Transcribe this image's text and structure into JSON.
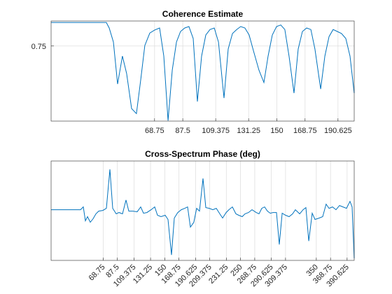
{
  "chart_data": [
    {
      "type": "line",
      "title": "Coherence Estimate",
      "color": "#0072bd",
      "grid": true,
      "xlim": [
        0,
        201.4
      ],
      "ylim": [
        0.6,
        0.8
      ],
      "xticks": [
        68.75,
        87.5,
        109.375,
        131.25,
        150,
        168.75,
        190.625
      ],
      "yticks": [
        0.75
      ],
      "x": [
        0,
        36.7,
        38.6,
        41.4,
        44.2,
        47.4,
        50.2,
        53.5,
        56.7,
        59.5,
        62.3,
        65.6,
        68.8,
        72.1,
        74.9,
        77.7,
        80.5,
        83.3,
        86,
        88.8,
        91.6,
        94.4,
        97.2,
        100,
        102.8,
        105.6,
        108.4,
        111.2,
        114.9,
        117.7,
        120.5,
        123.3,
        126,
        128.8,
        131.6,
        134.4,
        138.1,
        141.4,
        144.2,
        147,
        149.8,
        152.6,
        155.3,
        158.1,
        161.4,
        164.2,
        167,
        169.8,
        172.6,
        175.3,
        179.1,
        181.9,
        184.7,
        187.4,
        190.2,
        193,
        195.8,
        198.6,
        201.4
      ],
      "values": [
        0.797,
        0.797,
        0.786,
        0.758,
        0.674,
        0.73,
        0.695,
        0.625,
        0.615,
        0.681,
        0.751,
        0.776,
        0.782,
        0.786,
        0.73,
        0.601,
        0.702,
        0.758,
        0.779,
        0.786,
        0.789,
        0.765,
        0.639,
        0.73,
        0.772,
        0.783,
        0.786,
        0.758,
        0.646,
        0.744,
        0.775,
        0.783,
        0.789,
        0.786,
        0.772,
        0.741,
        0.702,
        0.677,
        0.73,
        0.772,
        0.789,
        0.792,
        0.783,
        0.73,
        0.656,
        0.744,
        0.779,
        0.786,
        0.783,
        0.744,
        0.664,
        0.73,
        0.769,
        0.783,
        0.779,
        0.775,
        0.765,
        0.73,
        0.656
      ]
    },
    {
      "type": "line",
      "title": "Cross-Spectrum Phase (deg)",
      "color": "#0072bd",
      "grid": true,
      "xlim": [
        0,
        400
      ],
      "ylim": [
        -102,
        98
      ],
      "xticks": [
        68.75,
        87.5,
        109.375,
        131.25,
        150,
        168.75,
        190.625,
        209.375,
        231.25,
        250,
        268.75,
        290.625,
        309.375,
        350,
        368.75,
        390.625
      ],
      "x": [
        0,
        38.8,
        42.5,
        45.3,
        48,
        51.7,
        55.4,
        59.1,
        62.8,
        68.4,
        73,
        77.6,
        81.3,
        85.9,
        89.6,
        94.2,
        98.8,
        102.5,
        108.1,
        113.6,
        118.2,
        121.9,
        126.5,
        132,
        136.7,
        140.4,
        145,
        150.6,
        154.3,
        158.9,
        162.6,
        167.2,
        171.8,
        176.4,
        180.1,
        183.8,
        188.4,
        192.1,
        195.8,
        200.5,
        204.2,
        208.8,
        213.4,
        218,
        222.6,
        226.3,
        231,
        234.6,
        239.3,
        243.9,
        247.6,
        252.2,
        255.9,
        260.5,
        265.1,
        270.7,
        274.4,
        278.1,
        281.8,
        285.5,
        289.2,
        292.8,
        297.5,
        301.2,
        304.9,
        309.5,
        314.1,
        318.7,
        322.4,
        328,
        332.6,
        336.3,
        340,
        344.6,
        348.3,
        353.8,
        358.4,
        363,
        366.8,
        371.4,
        376,
        380.6,
        385.2,
        389.8,
        394.5,
        397.2,
        400
      ],
      "values": [
        0,
        0,
        5.6,
        -22.4,
        -14,
        -25.2,
        -18.2,
        -8.4,
        -2.8,
        -1.4,
        2.8,
        81.2,
        2.8,
        -8.4,
        -5.6,
        -8.4,
        19.6,
        -2.8,
        -2.8,
        -4.2,
        5.6,
        -7,
        -5.6,
        0,
        5.6,
        -11.2,
        -14,
        -11.2,
        -19.6,
        -91,
        -16.8,
        -5.6,
        0,
        2.8,
        5.6,
        -35,
        -25.2,
        2.8,
        -2.8,
        63,
        4.2,
        2.8,
        0,
        2.8,
        -8.4,
        -16.8,
        -5.6,
        0,
        5.6,
        -8.4,
        -11.2,
        -14,
        -8.4,
        -5.6,
        0,
        -5.6,
        -8.4,
        2.8,
        5.6,
        -2.8,
        -7,
        -5.6,
        -5.6,
        -70,
        -7,
        -11.2,
        -14,
        -8.4,
        0,
        -8.4,
        0,
        4.2,
        -63,
        -7,
        -19.6,
        -16.8,
        -14,
        11.2,
        2.8,
        5.6,
        0,
        8.4,
        5.6,
        2.8,
        16.8,
        5.6,
        -98
      ]
    }
  ]
}
